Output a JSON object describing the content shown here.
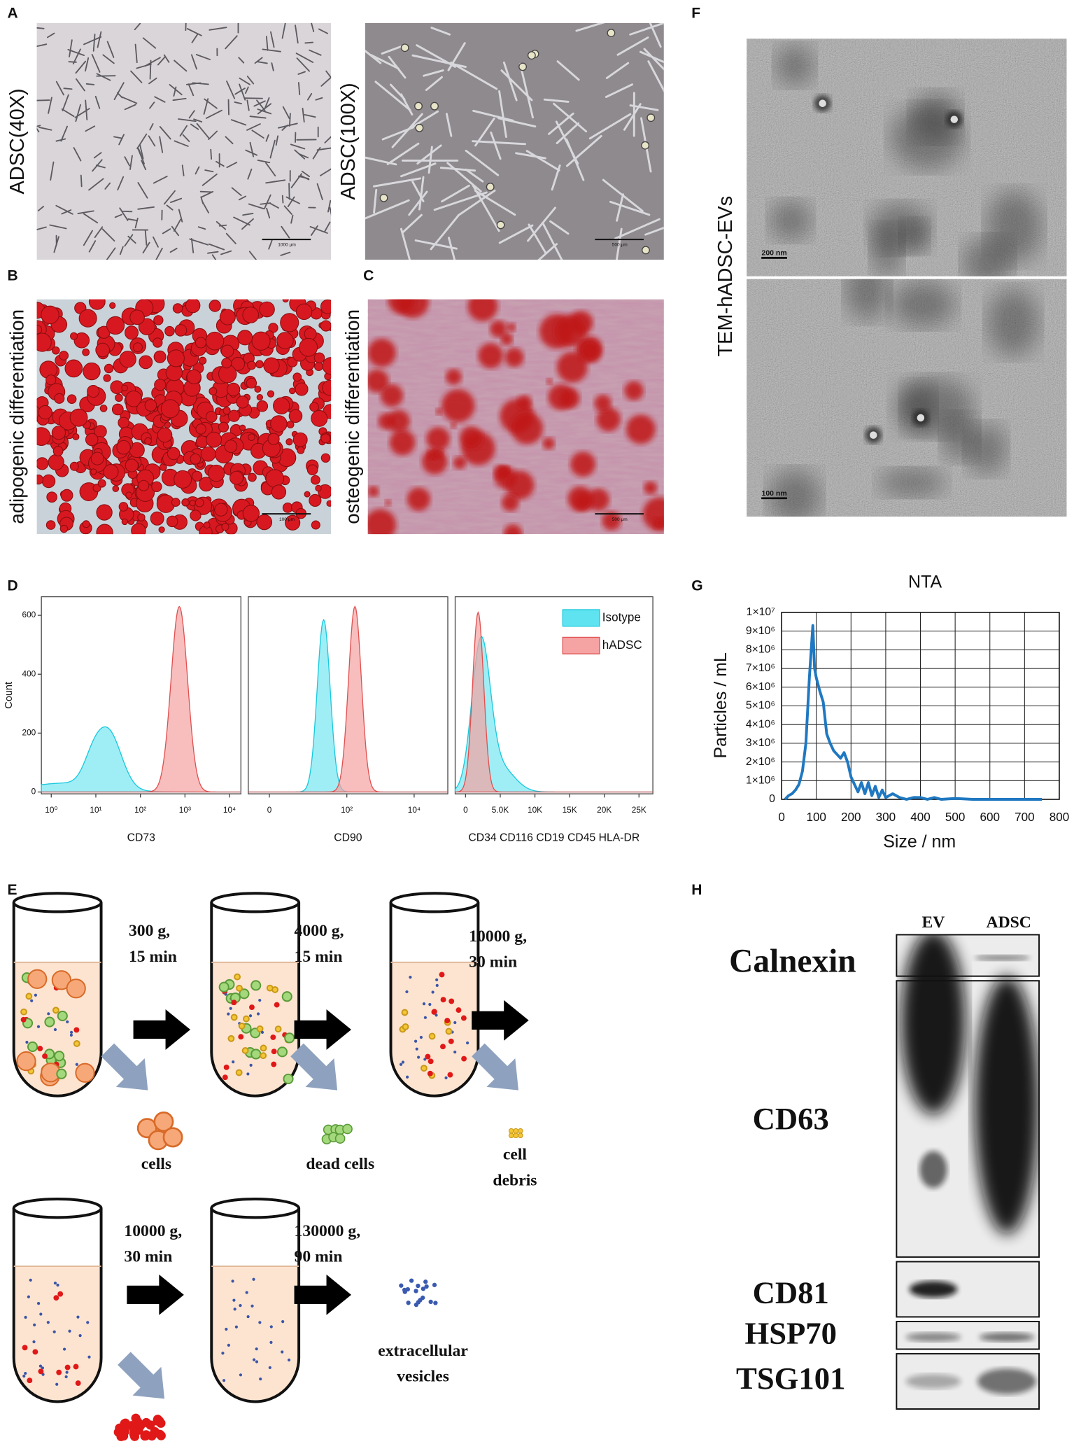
{
  "panel_labels": [
    "A",
    "B",
    "C",
    "D",
    "E",
    "F",
    "G",
    "H"
  ],
  "micrographs": [
    {
      "label": "ADSC(40X)",
      "scale": "1000 μm"
    },
    {
      "label": "ADSC(100X)",
      "scale": "500 μm"
    },
    {
      "label": "adipogenic differentiation",
      "scale": "100 μm"
    },
    {
      "label": "osteogenic differentiation",
      "scale": "500 μm"
    }
  ],
  "tem": {
    "label": "TEM-hADSC-EVs",
    "scales": [
      "200 nm",
      "100 nm"
    ]
  },
  "flow": {
    "y_label": "Count",
    "ylim": [
      0,
      660
    ],
    "yticks": [
      0,
      200,
      400,
      600
    ],
    "legend": [
      {
        "name": "Isotype",
        "color": "#5fe3f0"
      },
      {
        "name": "hADSC",
        "color": "#f5a3a3"
      }
    ],
    "panels": [
      {
        "x_label": "CD73",
        "scale": "log",
        "xlim": [
          0.6,
          18000
        ],
        "xticks": [
          {
            "value": 1,
            "label": "10⁰"
          },
          {
            "value": 10,
            "label": "10¹"
          },
          {
            "value": 100,
            "label": "10²"
          },
          {
            "value": 1000,
            "label": "10³"
          },
          {
            "value": 10000,
            "label": "10⁴"
          }
        ]
      },
      {
        "x_label": "CD90",
        "scale": "asinh",
        "xlim": [
          -2,
          100000
        ],
        "xticks": [
          0,
          {
            "value": 100,
            "label": "10²"
          },
          {
            "value": 10000,
            "label": "10⁴"
          }
        ]
      },
      {
        "x_label": "CD34 CD116 CD19 CD45 HLA-DR",
        "scale": "linear",
        "xlim": [
          -1500,
          27000
        ],
        "xticks": [
          0,
          {
            "value": 5000,
            "label": "5.0K"
          },
          {
            "value": 10000,
            "label": "10K"
          },
          {
            "value": 15000,
            "label": "15K"
          },
          {
            "value": 20000,
            "label": "20K"
          },
          {
            "value": 25000,
            "label": "25K"
          }
        ]
      }
    ]
  },
  "chart_data": {
    "type": "line",
    "title": "NTA",
    "x_label": "Size / nm",
    "y_label": "Particles / mL",
    "color": "#1f78c1",
    "grid": true,
    "xlim": [
      0,
      800
    ],
    "xticks": [
      0,
      100,
      200,
      300,
      400,
      500,
      600,
      700,
      800
    ],
    "ylim": [
      0,
      10000000
    ],
    "yticks": [
      0,
      {
        "value": 1000000,
        "label": "1×10⁶"
      },
      {
        "value": 2000000,
        "label": "2×10⁶"
      },
      {
        "value": 3000000,
        "label": "3×10⁶"
      },
      {
        "value": 4000000,
        "label": "4×10⁶"
      },
      {
        "value": 5000000,
        "label": "5×10⁶"
      },
      {
        "value": 6000000,
        "label": "6×10⁶"
      },
      {
        "value": 7000000,
        "label": "7×10⁶"
      },
      {
        "value": 8000000,
        "label": "8×10⁶"
      },
      {
        "value": 9000000,
        "label": "9×10⁶"
      },
      {
        "value": 10000000,
        "label": "1×10⁷"
      }
    ],
    "x": [
      10,
      20,
      30,
      40,
      50,
      60,
      70,
      80,
      90,
      95,
      100,
      110,
      120,
      130,
      140,
      150,
      160,
      170,
      180,
      190,
      200,
      210,
      220,
      230,
      240,
      250,
      260,
      270,
      280,
      290,
      300,
      320,
      340,
      360,
      380,
      400,
      420,
      440,
      460,
      500,
      550,
      600,
      650,
      700,
      750
    ],
    "values": [
      0,
      200000,
      300000,
      500000,
      800000,
      1500000,
      3000000,
      6500000,
      9300000,
      7000000,
      6500000,
      5800000,
      5200000,
      3500000,
      3000000,
      2600000,
      2400000,
      2200000,
      2500000,
      2000000,
      1200000,
      800000,
      400000,
      900000,
      300000,
      900000,
      200000,
      700000,
      100000,
      500000,
      100000,
      300000,
      100000,
      0,
      100000,
      100000,
      0,
      100000,
      0,
      50000,
      0,
      0,
      0,
      0,
      0
    ]
  },
  "centrifugation": {
    "steps": [
      [
        "300 g,",
        "15 min"
      ],
      [
        "4000 g,",
        "15 min"
      ],
      [
        "10000 g,",
        "30 min"
      ],
      [
        "10000 g,",
        "30 min"
      ],
      [
        "130000 g,",
        "90 min"
      ]
    ],
    "products": [
      [
        "cells"
      ],
      [
        "dead cells"
      ],
      [
        "cell",
        "debris"
      ],
      [
        "extracellular",
        "vesicles"
      ]
    ]
  },
  "blot": {
    "lanes": [
      "EV",
      "ADSC"
    ],
    "proteins": [
      "Calnexin",
      "CD63",
      "CD81",
      "HSP70",
      "TSG101"
    ]
  }
}
